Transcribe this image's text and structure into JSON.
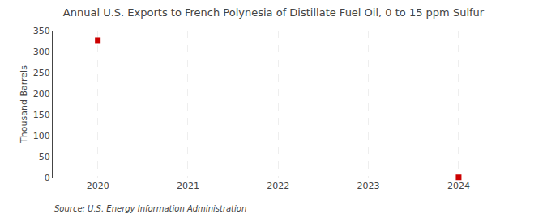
{
  "chart_data": {
    "type": "scatter",
    "title": "Annual U.S. Exports to French Polynesia of Distillate Fuel Oil, 0 to 15 ppm Sulfur",
    "y_label": "Thousand Barrels",
    "annotations": [
      "Source: U.S. Energy Information Administration"
    ],
    "x": [
      2020,
      2024
    ],
    "values": [
      327,
      0.5
    ],
    "color": "#cc0000",
    "marker": "square",
    "xlim": [
      2019.5,
      2024.8
    ],
    "ylim": [
      0,
      350
    ],
    "xticks": [
      2020,
      2021,
      2022,
      2023,
      2024
    ],
    "yticks": [
      0,
      50,
      100,
      150,
      200,
      250,
      300,
      350
    ],
    "grid": true
  }
}
